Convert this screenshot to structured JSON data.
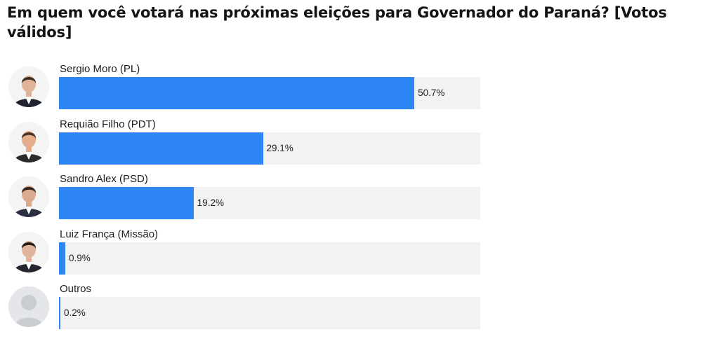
{
  "chart_data": {
    "type": "bar",
    "orientation": "horizontal",
    "title": "Em quem você votará nas próximas eleições para Governador do Paraná? [Votos válidos]",
    "categories": [
      "Sergio Moro (PL)",
      "Requião Filho (PDT)",
      "Sandro Alex (PSD)",
      "Luiz França (Missão)",
      "Outros"
    ],
    "values": [
      50.7,
      29.1,
      19.2,
      0.9,
      0.2
    ],
    "value_labels": [
      "50.7%",
      "29.1%",
      "19.2%",
      "0.9%",
      "0.2%"
    ],
    "xlim": [
      0,
      100
    ],
    "grid": false,
    "colors": {
      "bar": "#2e86f5",
      "track": "#f2f2f2"
    }
  },
  "avatars": [
    {
      "icon": "candidate-photo-icon",
      "skin": "#e2b497",
      "hair": "#3a2d25",
      "suit": "#1f2430"
    },
    {
      "icon": "candidate-photo-icon",
      "skin": "#e6ad8c",
      "hair": "#4a3324",
      "suit": "#2b2b2b"
    },
    {
      "icon": "candidate-photo-icon",
      "skin": "#dcab8e",
      "hair": "#2f241d",
      "suit": "#2a3040"
    },
    {
      "icon": "candidate-photo-icon",
      "skin": "#e0b59c",
      "hair": "#1f1915",
      "suit": "#23262e"
    },
    {
      "icon": "placeholder-person-icon",
      "skin": "#c9cdd2",
      "hair": "#c9cdd2",
      "suit": "#c9cdd2"
    }
  ]
}
